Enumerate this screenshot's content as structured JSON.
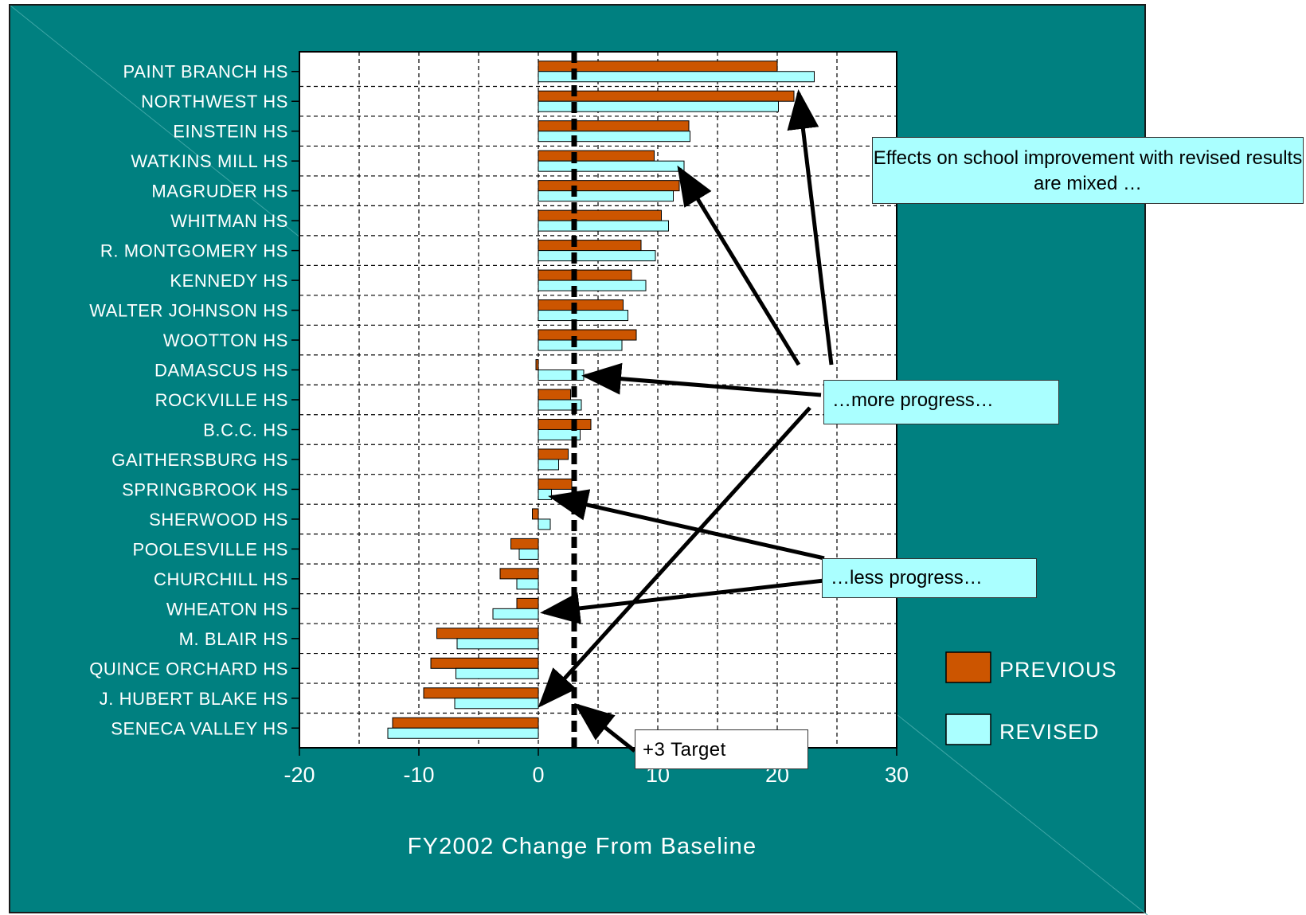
{
  "chart_data": {
    "type": "bar",
    "orientation": "horizontal",
    "title": "",
    "xlabel": "FY2002 Change From Baseline",
    "ylabel": "",
    "xlim": [
      -20,
      30
    ],
    "xticks": [
      -20,
      -10,
      0,
      10,
      20,
      30
    ],
    "grid": true,
    "legend_position": "right",
    "categories": [
      "PAINT BRANCH HS",
      "NORTHWEST HS",
      "EINSTEIN HS",
      "WATKINS MILL HS",
      "MAGRUDER HS",
      "WHITMAN HS",
      "R. MONTGOMERY HS",
      "KENNEDY HS",
      "WALTER JOHNSON HS",
      "WOOTTON HS",
      "DAMASCUS HS",
      "ROCKVILLE HS",
      "B.C.C. HS",
      "GAITHERSBURG HS",
      "SPRINGBROOK HS",
      "SHERWOOD HS",
      "POOLESVILLE HS",
      "CHURCHILL HS",
      "WHEATON HS",
      "M. BLAIR HS",
      "QUINCE ORCHARD HS",
      "J. HUBERT BLAKE HS",
      "SENECA VALLEY HS"
    ],
    "series": [
      {
        "name": "PREVIOUS",
        "color": "#cc5500",
        "values": [
          20,
          21.4,
          12.6,
          9.7,
          11.8,
          10.3,
          8.6,
          7.8,
          7.1,
          8.2,
          -0.2,
          2.7,
          4.4,
          2.5,
          2.8,
          -0.5,
          -2.3,
          -3.2,
          -1.8,
          -8.5,
          -9.0,
          -9.6,
          -12.2
        ]
      },
      {
        "name": "REVISED",
        "color": "#aaffff",
        "values": [
          23.1,
          20.1,
          12.7,
          12.2,
          11.3,
          10.9,
          9.8,
          9.0,
          7.5,
          7.0,
          3.8,
          3.6,
          3.5,
          1.7,
          1.1,
          1.0,
          -1.6,
          -1.8,
          -3.8,
          -6.8,
          -6.9,
          -7.0,
          -12.6
        ]
      }
    ],
    "target": {
      "value": 3,
      "label": "+3 Target"
    },
    "annotations": [
      "Effects on school improvement with revised results are mixed …",
      "…more progress…",
      "…less progress…"
    ]
  },
  "colors": {
    "background": "#008080",
    "plot_area": "#ffffff",
    "previous": "#cc5500",
    "revised": "#aaffff"
  }
}
